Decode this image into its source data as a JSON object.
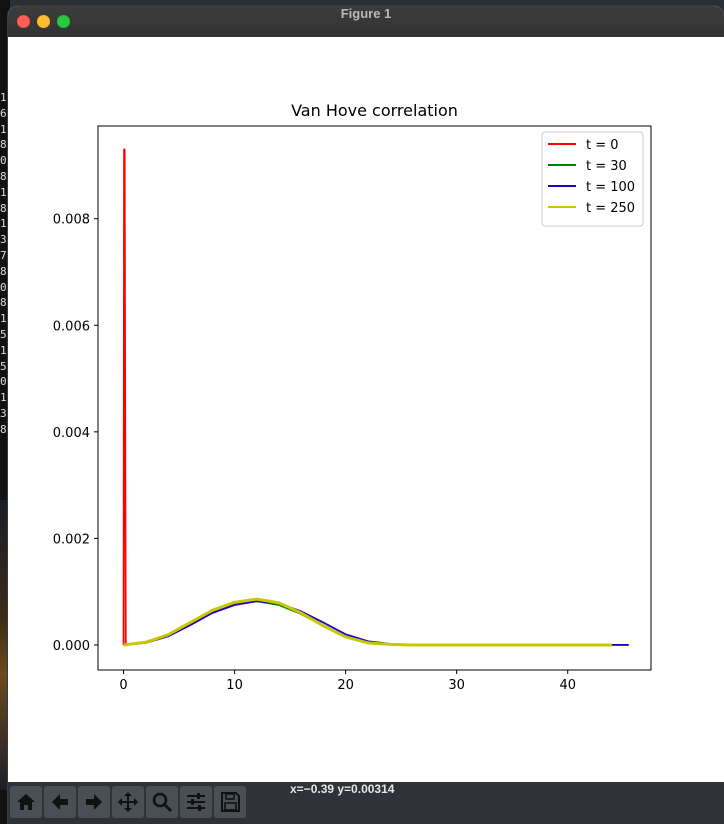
{
  "window": {
    "title": "Figure 1"
  },
  "background_terminal": {
    "lines": [
      "1",
      "6",
      "1",
      "8",
      "0",
      "8",
      "1",
      "8",
      "1",
      "3",
      "7",
      "8",
      "0",
      "8",
      "1",
      "5",
      "1",
      "5",
      "0",
      "1",
      "3",
      "8"
    ]
  },
  "toolbar": {
    "buttons": [
      {
        "name": "home-button",
        "icon": "home-icon"
      },
      {
        "name": "back-button",
        "icon": "arrow-left-icon"
      },
      {
        "name": "forward-button",
        "icon": "arrow-right-icon"
      },
      {
        "name": "pan-button",
        "icon": "move-icon"
      },
      {
        "name": "zoom-button",
        "icon": "magnifier-icon"
      },
      {
        "name": "configure-subplots-button",
        "icon": "sliders-icon"
      },
      {
        "name": "save-button",
        "icon": "floppy-disk-icon"
      }
    ],
    "coordinates": "x=−0.39 y=0.00314"
  },
  "chart_data": {
    "type": "line",
    "title": "Van Hove correlation",
    "xlabel": "",
    "ylabel": "",
    "xlim": [
      -2.3,
      47.5
    ],
    "ylim": [
      -0.00047,
      0.00974
    ],
    "xticks": [
      0,
      10,
      20,
      30,
      40
    ],
    "xtick_labels": [
      "0",
      "10",
      "20",
      "30",
      "40"
    ],
    "yticks": [
      0.0,
      0.002,
      0.004,
      0.006,
      0.008
    ],
    "ytick_labels": [
      "0.000",
      "0.002",
      "0.004",
      "0.006",
      "0.008"
    ],
    "grid": false,
    "legend_position": "top-right",
    "series": [
      {
        "name": "t = 0",
        "color": "#ff0000",
        "x": [
          0,
          0.05,
          0.1,
          0.15,
          0.2
        ],
        "y": [
          0.0,
          0.0093,
          0.0093,
          0.004,
          0.0
        ]
      },
      {
        "name": "t = 30",
        "color": "#008000",
        "x": [
          0,
          2,
          4,
          6,
          8,
          10,
          12,
          14,
          16,
          18,
          20,
          22,
          24,
          26,
          30,
          35,
          40,
          44
        ],
        "y": [
          0.0,
          5e-05,
          0.00018,
          0.0004,
          0.00062,
          0.00076,
          0.00082,
          0.00075,
          0.00058,
          0.00036,
          0.00016,
          5e-05,
          1e-05,
          0.0,
          0.0,
          0.0,
          0.0,
          0.0
        ]
      },
      {
        "name": "t = 100",
        "color": "#2200cc",
        "x": [
          0,
          2,
          4,
          6,
          8,
          10,
          12,
          14,
          16,
          18,
          20,
          22,
          24,
          26,
          30,
          35,
          40,
          45.5
        ],
        "y": [
          0.0,
          4e-05,
          0.00016,
          0.00037,
          0.0006,
          0.00075,
          0.00082,
          0.00078,
          0.00063,
          0.00042,
          0.0002,
          7e-05,
          2e-05,
          0.0,
          0.0,
          0.0,
          0.0,
          0.0
        ]
      },
      {
        "name": "t = 250",
        "color": "#c8c800",
        "x": [
          0,
          2,
          4,
          6,
          8,
          10,
          12,
          14,
          16,
          18,
          20,
          22,
          24,
          26,
          30,
          35,
          40,
          44
        ],
        "y": [
          0.0,
          5e-05,
          0.00019,
          0.00042,
          0.00065,
          0.0008,
          0.00086,
          0.00079,
          0.0006,
          0.00036,
          0.00015,
          4e-05,
          1e-05,
          0.0,
          0.0,
          0.0,
          0.0,
          0.0
        ]
      }
    ]
  }
}
